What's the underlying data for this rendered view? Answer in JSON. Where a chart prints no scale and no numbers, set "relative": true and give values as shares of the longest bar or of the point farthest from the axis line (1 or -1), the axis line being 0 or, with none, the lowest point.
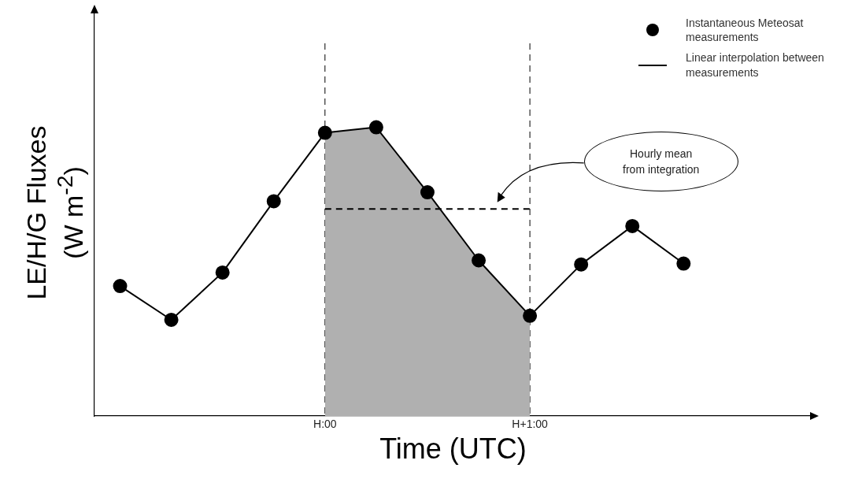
{
  "chart_data": {
    "type": "line",
    "relative": true,
    "xlabel": "Time (UTC)",
    "ylabel": "LE/H/G Fluxes\n(W m$^{-2}$)",
    "categories": [
      null,
      null,
      null,
      null,
      "H:00",
      null,
      null,
      null,
      "H+1:00",
      null,
      null,
      null,
      null,
      null
    ],
    "grid": false,
    "legend": "top right",
    "series": [
      {
        "type": "area",
        "color": "#b0b0b0",
        "values": [
          null,
          null,
          null,
          null,
          0.981,
          1,
          0.775,
          0.539,
          0.347,
          null,
          null,
          null,
          null,
          null
        ]
      },
      {
        "type": "line",
        "name": "Linear interpolation between measurements",
        "color": "#000000",
        "marker": "none",
        "line_style": "solid",
        "values": [
          0.45,
          0.333,
          0.497,
          0.744,
          0.981,
          1,
          0.775,
          0.539,
          0.347,
          0.525,
          0.658,
          0.528,
          null,
          null
        ]
      },
      {
        "type": "scatter",
        "name": "Instantaneous Meteosat measurements",
        "color": "#000000",
        "marker": "circle",
        "values": [
          0.45,
          0.333,
          0.497,
          0.744,
          0.981,
          1,
          0.775,
          0.539,
          0.347,
          0.525,
          0.658,
          0.528,
          null,
          null
        ]
      },
      {
        "type": "line",
        "color": "#000000",
        "marker": "none",
        "line_style": "dashed",
        "values": [
          null,
          null,
          null,
          null,
          0.717,
          null,
          null,
          null,
          0.717,
          null,
          null,
          null,
          null,
          null
        ]
      }
    ],
    "ref_lines": [
      {
        "axis": "x",
        "value": "H:00",
        "color": "#000000",
        "line_style": "dashed"
      },
      {
        "axis": "x",
        "value": "H+1:00",
        "color": "#000000",
        "line_style": "dashed"
      }
    ],
    "annotations": [
      "Hourly mean\nfrom integration"
    ]
  }
}
